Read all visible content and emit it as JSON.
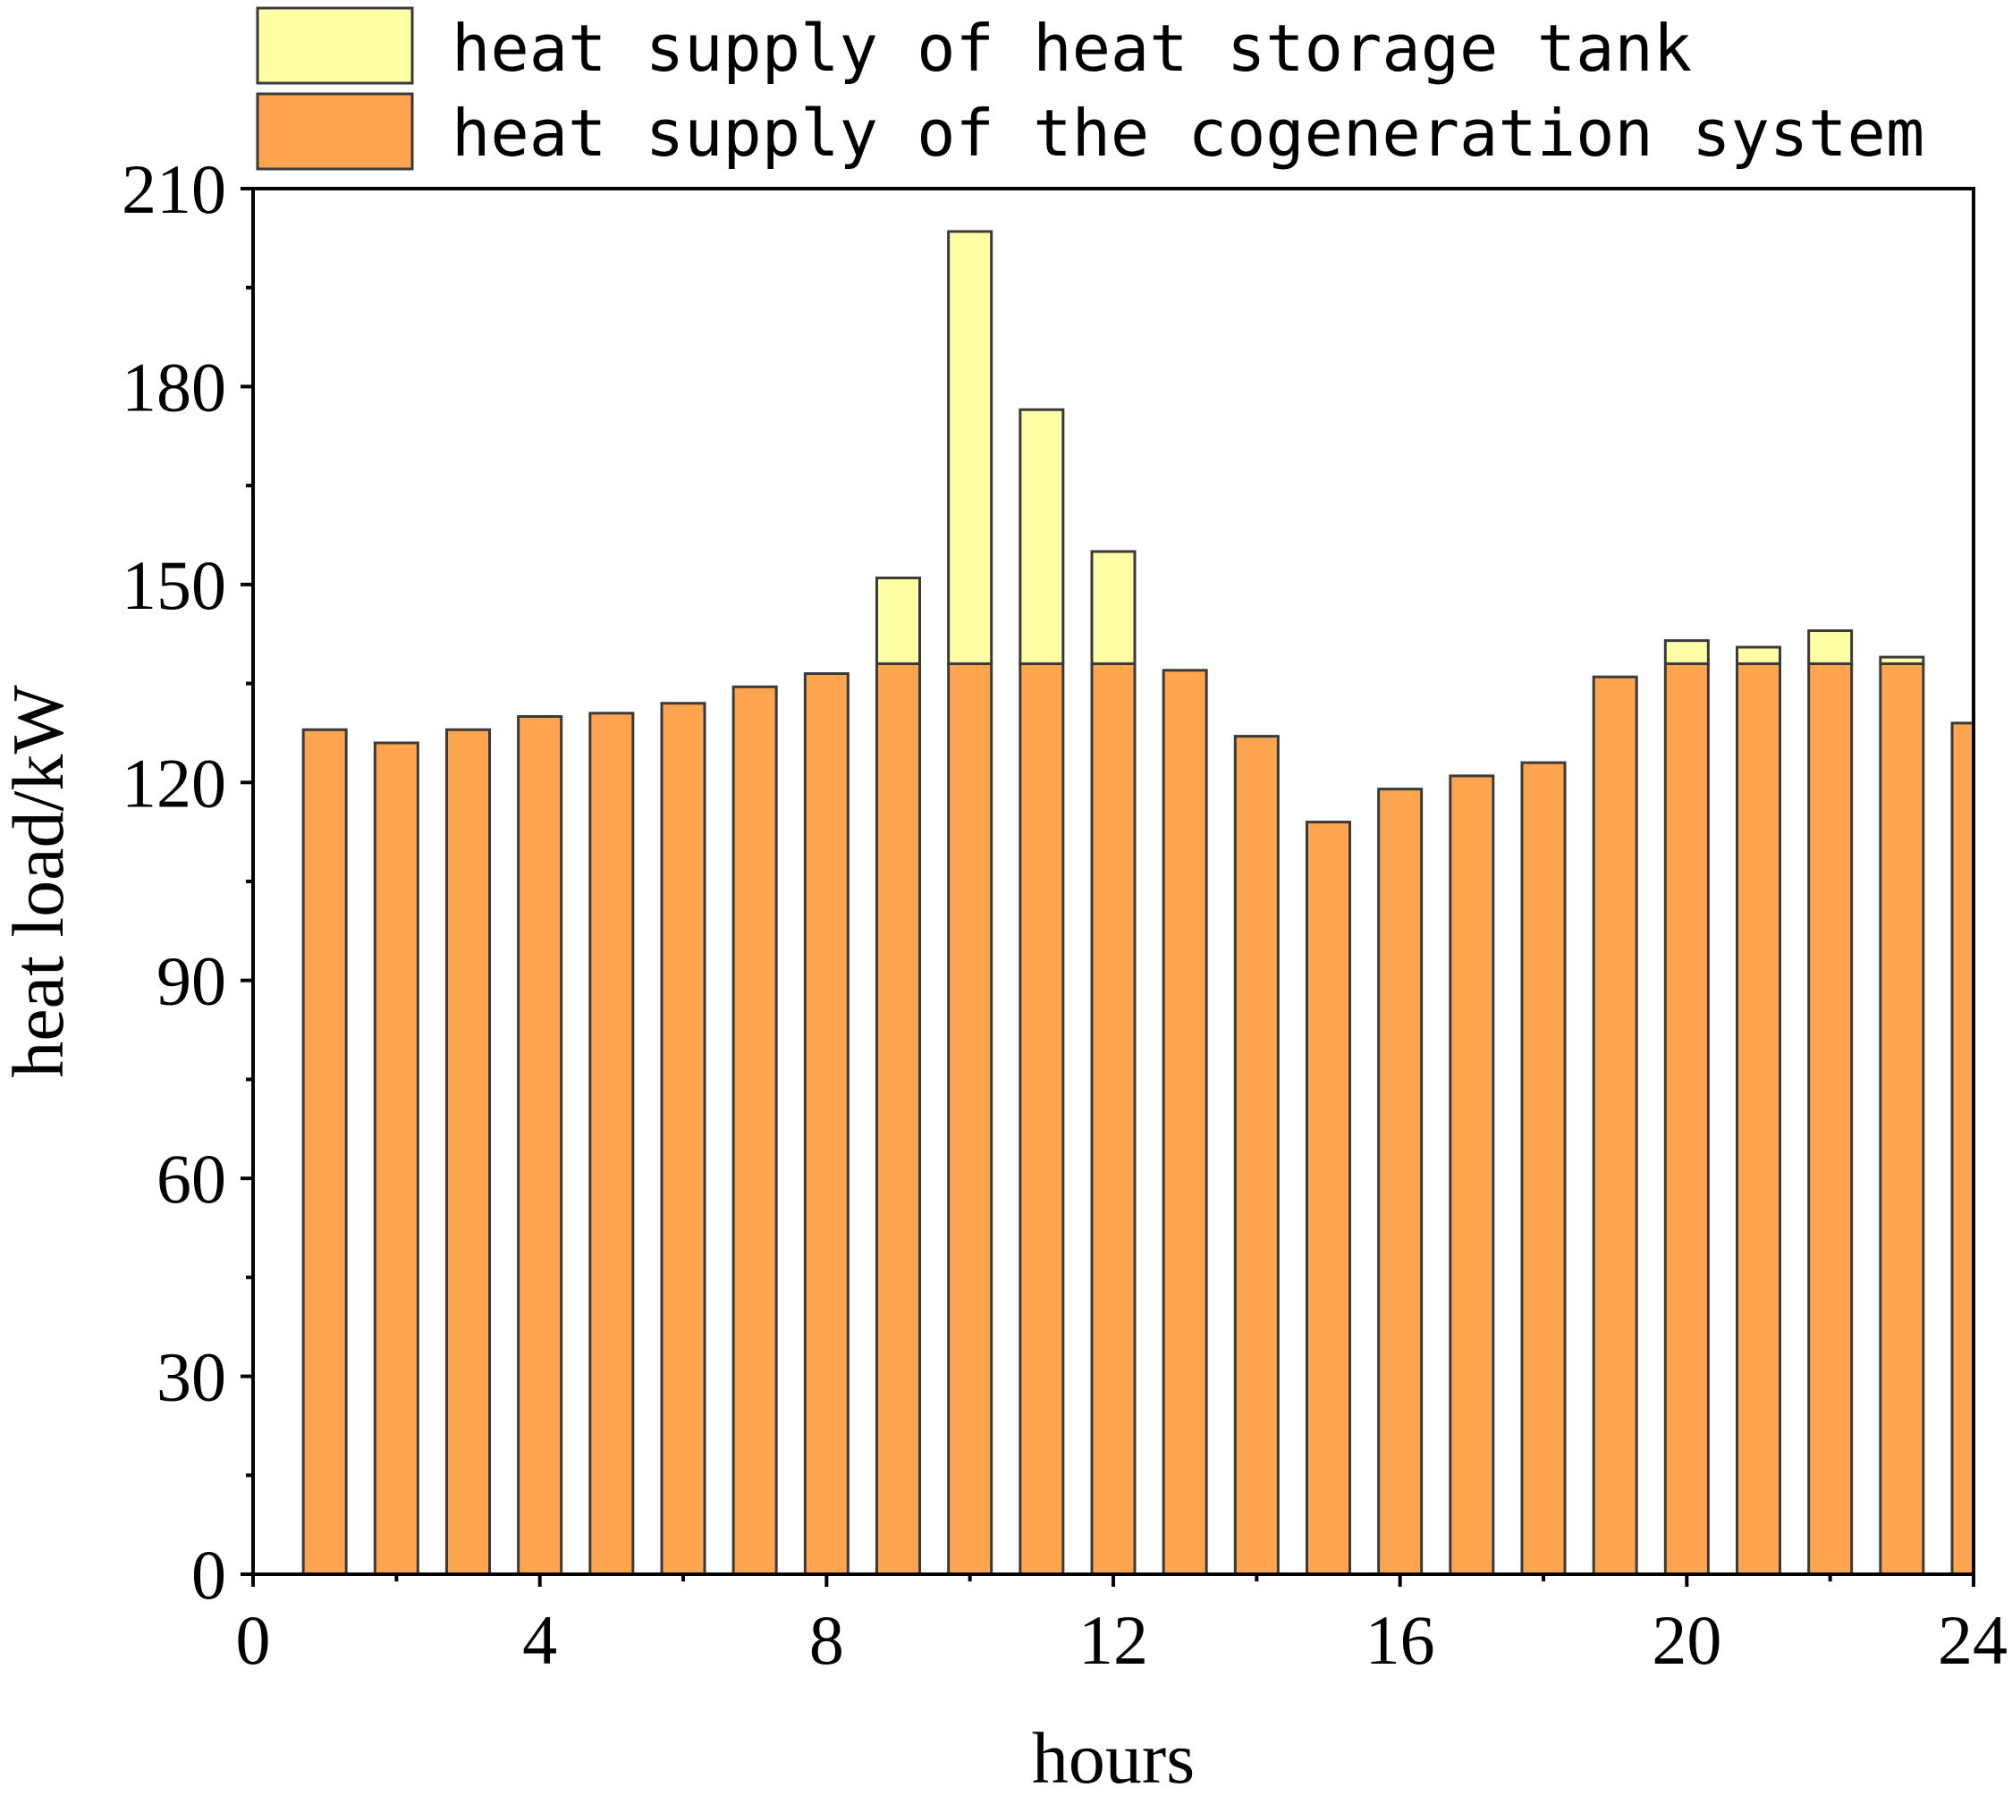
{
  "chart_data": {
    "type": "bar",
    "stacked": true,
    "title": "",
    "xlabel": "hours",
    "ylabel": "heat load/kW",
    "xlim": [
      0,
      24
    ],
    "ylim": [
      0,
      210
    ],
    "x_ticks": [
      0,
      4,
      8,
      12,
      16,
      20,
      24
    ],
    "x_tick_labels": [
      "0",
      "4",
      "8",
      "12",
      "16",
      "20",
      "24"
    ],
    "y_ticks": [
      0,
      30,
      60,
      90,
      120,
      150,
      180,
      210
    ],
    "y_tick_labels": [
      "0",
      "30",
      "60",
      "90",
      "120",
      "150",
      "180",
      "210"
    ],
    "grid": false,
    "legend_position": "top",
    "x": [
      1,
      2,
      3,
      4,
      5,
      6,
      7,
      8,
      9,
      10,
      11,
      12,
      13,
      14,
      15,
      16,
      17,
      18,
      19,
      20,
      21,
      22,
      23,
      24
    ],
    "series": [
      {
        "name": "heat supply of the cogeneration system",
        "color": "#ffa54f",
        "values": [
          128,
          126,
          128,
          130,
          130.5,
          132,
          134.5,
          136.5,
          138,
          138,
          138,
          138,
          137,
          127,
          114,
          119,
          121,
          123,
          136,
          138,
          138,
          138,
          138,
          129
        ]
      },
      {
        "name": "heat supply of heat storage tank",
        "color": "#ffffa6",
        "values": [
          0,
          0,
          0,
          0,
          0,
          0,
          0,
          0,
          13,
          65.5,
          38.5,
          17,
          0,
          0,
          0,
          0,
          0,
          0,
          0,
          3.5,
          2.5,
          5,
          1,
          0
        ]
      }
    ]
  },
  "colors": {
    "axis": "#000000",
    "bar_outline": "#3a3a3a"
  }
}
